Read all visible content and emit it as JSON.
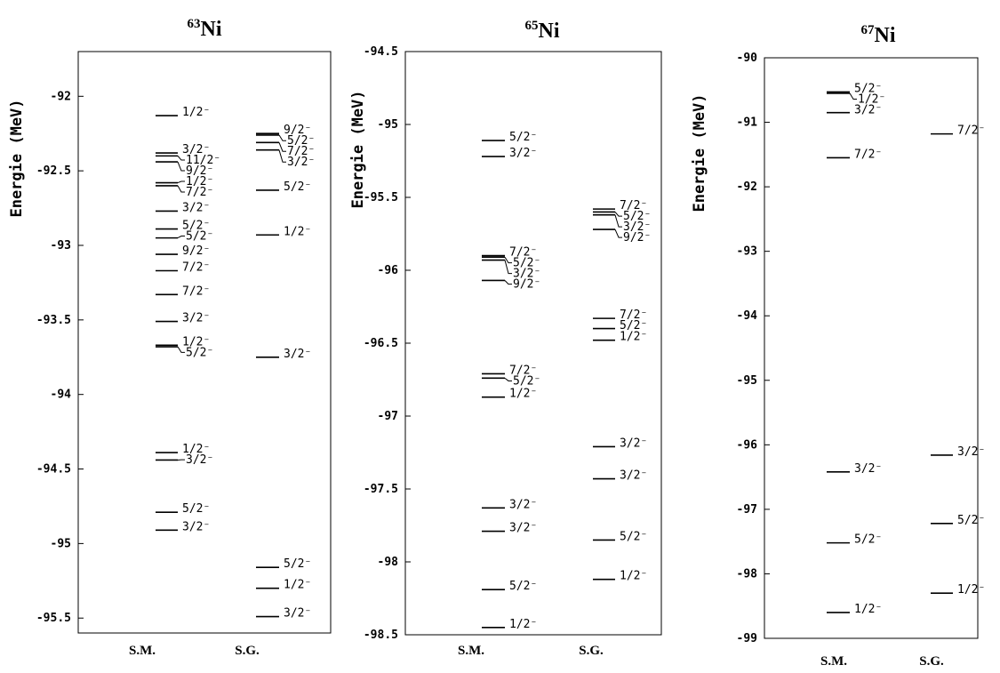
{
  "chart_data": [
    {
      "type": "energy-level",
      "title": "Ni",
      "mass_number": "63",
      "ylabel": "Energie (MeV)",
      "ylim": [
        -95.6,
        -91.7
      ],
      "yticks": [
        -92,
        -92.5,
        -93,
        -93.5,
        -94,
        -94.5,
        -95,
        -95.5
      ],
      "ytick_labels": [
        "-92",
        "-92.5",
        "-93",
        "-93.5",
        "-94",
        "-94.5",
        "-95",
        "-95.5"
      ],
      "columns": [
        "S.M.",
        "S.G."
      ],
      "levels": {
        "S.M.": [
          {
            "j": "1/2",
            "parity": "-",
            "energy": -92.13
          },
          {
            "j": "3/2",
            "parity": "-",
            "energy": -92.38
          },
          {
            "j": "9/2",
            "parity": "-",
            "energy": -92.44
          },
          {
            "j": "11/2",
            "parity": "-",
            "energy": -92.4
          },
          {
            "j": "1/2",
            "parity": "-",
            "energy": -92.58
          },
          {
            "j": "7/2",
            "parity": "-",
            "energy": -92.6
          },
          {
            "j": "3/2",
            "parity": "-",
            "energy": -92.77
          },
          {
            "j": "5/2",
            "parity": "-",
            "energy": -92.89
          },
          {
            "j": "5/2",
            "parity": "-",
            "energy": -92.95
          },
          {
            "j": "9/2",
            "parity": "-",
            "energy": -93.06
          },
          {
            "j": "7/2",
            "parity": "-",
            "energy": -93.17
          },
          {
            "j": "7/2",
            "parity": "-",
            "energy": -93.33
          },
          {
            "j": "3/2",
            "parity": "-",
            "energy": -93.51
          },
          {
            "j": "1/2",
            "parity": "-",
            "energy": -93.67
          },
          {
            "j": "5/2",
            "parity": "-",
            "energy": -93.68
          },
          {
            "j": "1/2",
            "parity": "-",
            "energy": -94.39
          },
          {
            "j": "3/2",
            "parity": "-",
            "energy": -94.44
          },
          {
            "j": "5/2",
            "parity": "-",
            "energy": -94.79
          },
          {
            "j": "3/2",
            "parity": "-",
            "energy": -94.91
          }
        ],
        "S.G.": [
          {
            "j": "9/2",
            "parity": "-",
            "energy": -92.25
          },
          {
            "j": "5/2",
            "parity": "-",
            "energy": -92.26
          },
          {
            "j": "7/2",
            "parity": "-",
            "energy": -92.31
          },
          {
            "j": "3/2",
            "parity": "-",
            "energy": -92.36
          },
          {
            "j": "5/2",
            "parity": "-",
            "energy": -92.63
          },
          {
            "j": "1/2",
            "parity": "-",
            "energy": -92.93
          },
          {
            "j": "3/2",
            "parity": "-",
            "energy": -93.75
          },
          {
            "j": "5/2",
            "parity": "-",
            "energy": -95.16
          },
          {
            "j": "1/2",
            "parity": "-",
            "energy": -95.3
          },
          {
            "j": "3/2",
            "parity": "-",
            "energy": -95.49
          }
        ]
      }
    },
    {
      "type": "energy-level",
      "title": "Ni",
      "mass_number": "65",
      "ylabel": "Energie (MeV)",
      "ylim": [
        -98.5,
        -94.5
      ],
      "yticks": [
        -94.5,
        -95,
        -95.5,
        -96,
        -96.5,
        -97,
        -97.5,
        -98,
        -98.5
      ],
      "ytick_labels": [
        "-94.5",
        "-95",
        "-95.5",
        "-96",
        "-96.5",
        "-97",
        "-97.5",
        "-98",
        "-98.5"
      ],
      "columns": [
        "S.M.",
        "S.G."
      ],
      "levels": {
        "S.M.": [
          {
            "j": "5/2",
            "parity": "-",
            "energy": -95.11
          },
          {
            "j": "3/2",
            "parity": "-",
            "energy": -95.22
          },
          {
            "j": "7/2",
            "parity": "-",
            "energy": -95.9
          },
          {
            "j": "5/2",
            "parity": "-",
            "energy": -95.91
          },
          {
            "j": "3/2",
            "parity": "-",
            "energy": -95.93
          },
          {
            "j": "9/2",
            "parity": "-",
            "energy": -96.07
          },
          {
            "j": "7/2",
            "parity": "-",
            "energy": -96.71
          },
          {
            "j": "5/2",
            "parity": "-",
            "energy": -96.74
          },
          {
            "j": "1/2",
            "parity": "-",
            "energy": -96.87
          },
          {
            "j": "3/2",
            "parity": "-",
            "energy": -97.63
          },
          {
            "j": "3/2",
            "parity": "-",
            "energy": -97.79
          },
          {
            "j": "5/2",
            "parity": "-",
            "energy": -98.19
          },
          {
            "j": "1/2",
            "parity": "-",
            "energy": -98.45
          }
        ],
        "S.G.": [
          {
            "j": "7/2",
            "parity": "-",
            "energy": -95.58
          },
          {
            "j": "5/2",
            "parity": "-",
            "energy": -95.6
          },
          {
            "j": "3/2",
            "parity": "-",
            "energy": -95.62
          },
          {
            "j": "9/2",
            "parity": "-",
            "energy": -95.72
          },
          {
            "j": "7/2",
            "parity": "-",
            "energy": -96.33
          },
          {
            "j": "5/2",
            "parity": "-",
            "energy": -96.4
          },
          {
            "j": "1/2",
            "parity": "-",
            "energy": -96.48
          },
          {
            "j": "3/2",
            "parity": "-",
            "energy": -97.21
          },
          {
            "j": "3/2",
            "parity": "-",
            "energy": -97.43
          },
          {
            "j": "5/2",
            "parity": "-",
            "energy": -97.85
          },
          {
            "j": "1/2",
            "parity": "-",
            "energy": -98.12
          }
        ]
      }
    },
    {
      "type": "energy-level",
      "title": "Ni",
      "mass_number": "67",
      "ylabel": "Energie (MeV)",
      "ylim": [
        -99,
        -90
      ],
      "yticks": [
        -90,
        -91,
        -92,
        -93,
        -94,
        -95,
        -96,
        -97,
        -98,
        -99
      ],
      "ytick_labels": [
        "-90",
        "-91",
        "-92",
        "-93",
        "-94",
        "-95",
        "-96",
        "-97",
        "-98",
        "-99"
      ],
      "columns": [
        "S.M.",
        "S.G."
      ],
      "levels": {
        "S.M.": [
          {
            "j": "5/2",
            "parity": "-",
            "energy": -90.53
          },
          {
            "j": "1/2",
            "parity": "-",
            "energy": -90.55
          },
          {
            "j": "3/2",
            "parity": "-",
            "energy": -90.85
          },
          {
            "j": "7/2",
            "parity": "-",
            "energy": -91.55
          },
          {
            "j": "3/2",
            "parity": "-",
            "energy": -96.42
          },
          {
            "j": "5/2",
            "parity": "-",
            "energy": -97.52
          },
          {
            "j": "1/2",
            "parity": "-",
            "energy": -98.6
          }
        ],
        "S.G.": [
          {
            "j": "7/2",
            "parity": "-",
            "energy": -91.18
          },
          {
            "j": "3/2",
            "parity": "-",
            "energy": -96.16
          },
          {
            "j": "5/2",
            "parity": "-",
            "energy": -97.22
          },
          {
            "j": "1/2",
            "parity": "-",
            "energy": -98.3
          }
        ]
      }
    }
  ]
}
